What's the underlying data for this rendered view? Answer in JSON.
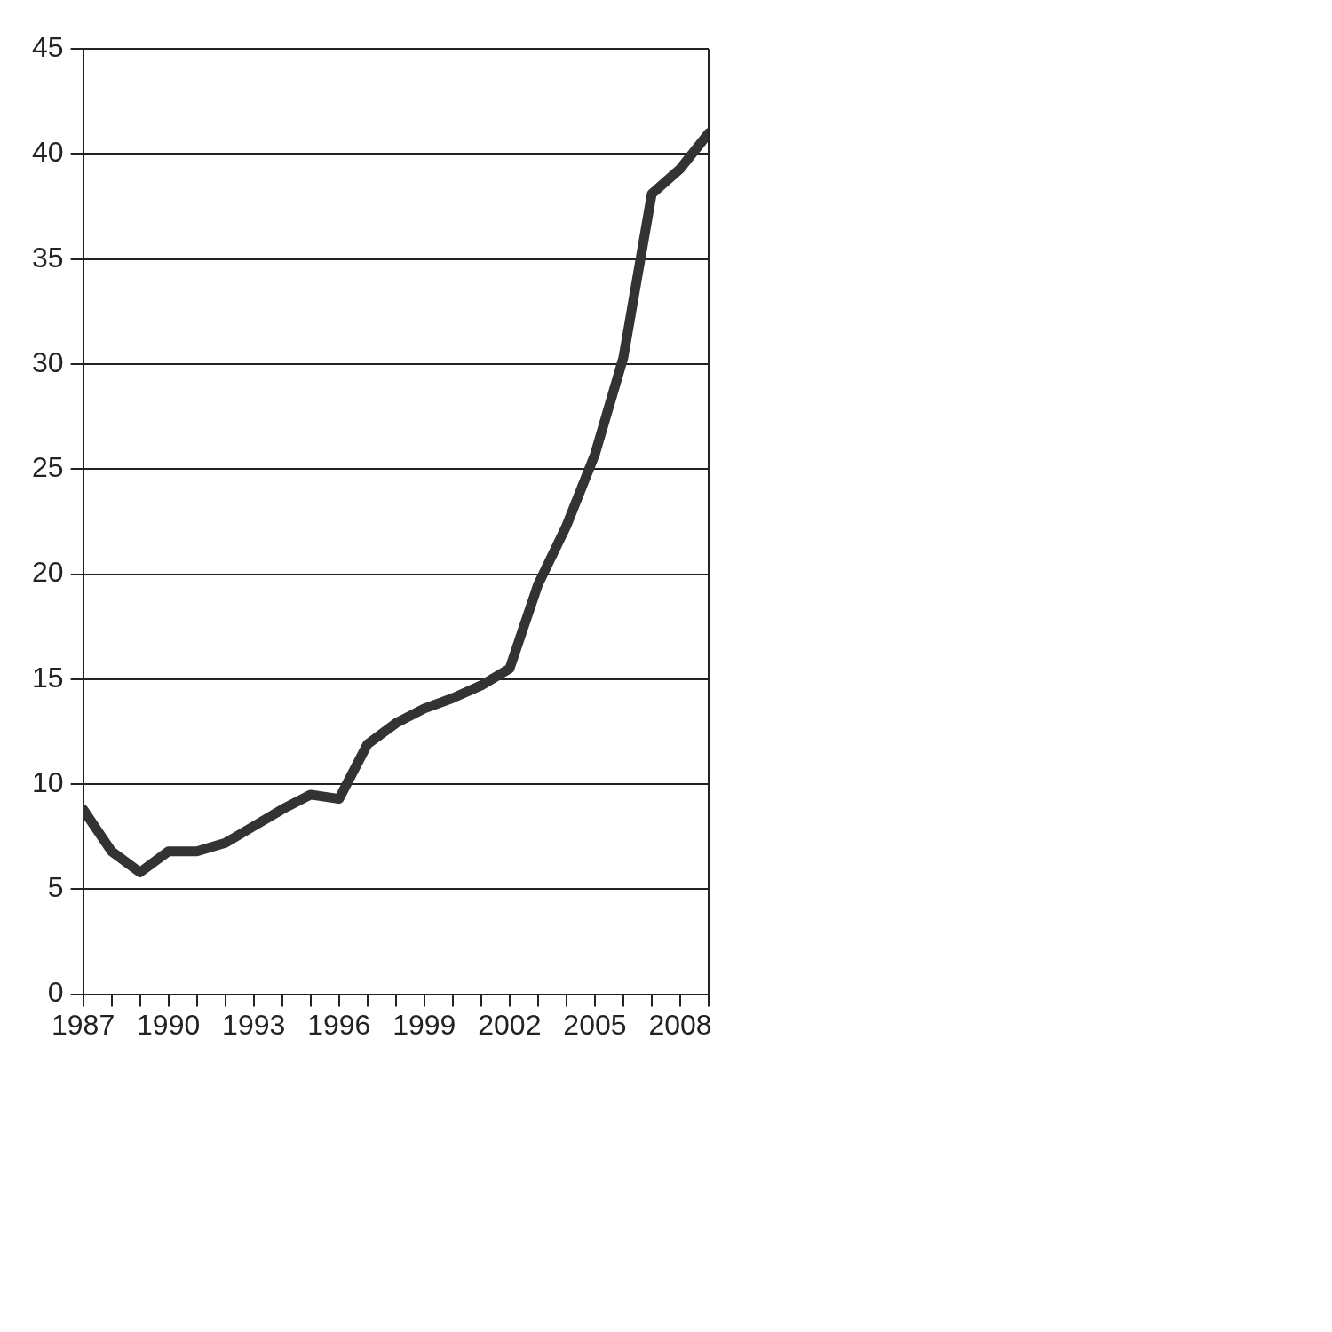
{
  "chart_data": {
    "type": "line",
    "color": "#333333",
    "marker": "none",
    "line_style": "solid",
    "legend": false,
    "grid": "y",
    "x": [
      1987,
      1988,
      1989,
      1990,
      1991,
      1992,
      1993,
      1994,
      1995,
      1996,
      1997,
      1998,
      1999,
      2000,
      2001,
      2002,
      2003,
      2004,
      2005,
      2006,
      2007,
      2008,
      2009
    ],
    "values": [
      8.8,
      6.8,
      5.8,
      6.8,
      6.8,
      7.2,
      8.0,
      8.8,
      9.5,
      9.3,
      11.9,
      12.9,
      13.6,
      14.1,
      14.7,
      15.5,
      19.5,
      22.3,
      25.7,
      30.3,
      38.1,
      39.3,
      41.0
    ],
    "xlim": [
      1987,
      2009
    ],
    "xticks": [
      1987,
      {
        "value": 1988,
        "label": null
      },
      {
        "value": 1989,
        "label": null
      },
      1990,
      {
        "value": 1991,
        "label": null
      },
      {
        "value": 1992,
        "label": null
      },
      1993,
      {
        "value": 1994,
        "label": null
      },
      {
        "value": 1995,
        "label": null
      },
      1996,
      {
        "value": 1997,
        "label": null
      },
      {
        "value": 1998,
        "label": null
      },
      1999,
      {
        "value": 2000,
        "label": null
      },
      {
        "value": 2001,
        "label": null
      },
      2002,
      {
        "value": 2003,
        "label": null
      },
      {
        "value": 2004,
        "label": null
      },
      2005,
      {
        "value": 2006,
        "label": null
      },
      {
        "value": 2007,
        "label": null
      },
      2008,
      {
        "value": 2009,
        "label": null
      }
    ],
    "ylim": [
      0,
      45
    ],
    "yticks": [
      0,
      5,
      10,
      15,
      20,
      25,
      30,
      35,
      40,
      45
    ]
  }
}
